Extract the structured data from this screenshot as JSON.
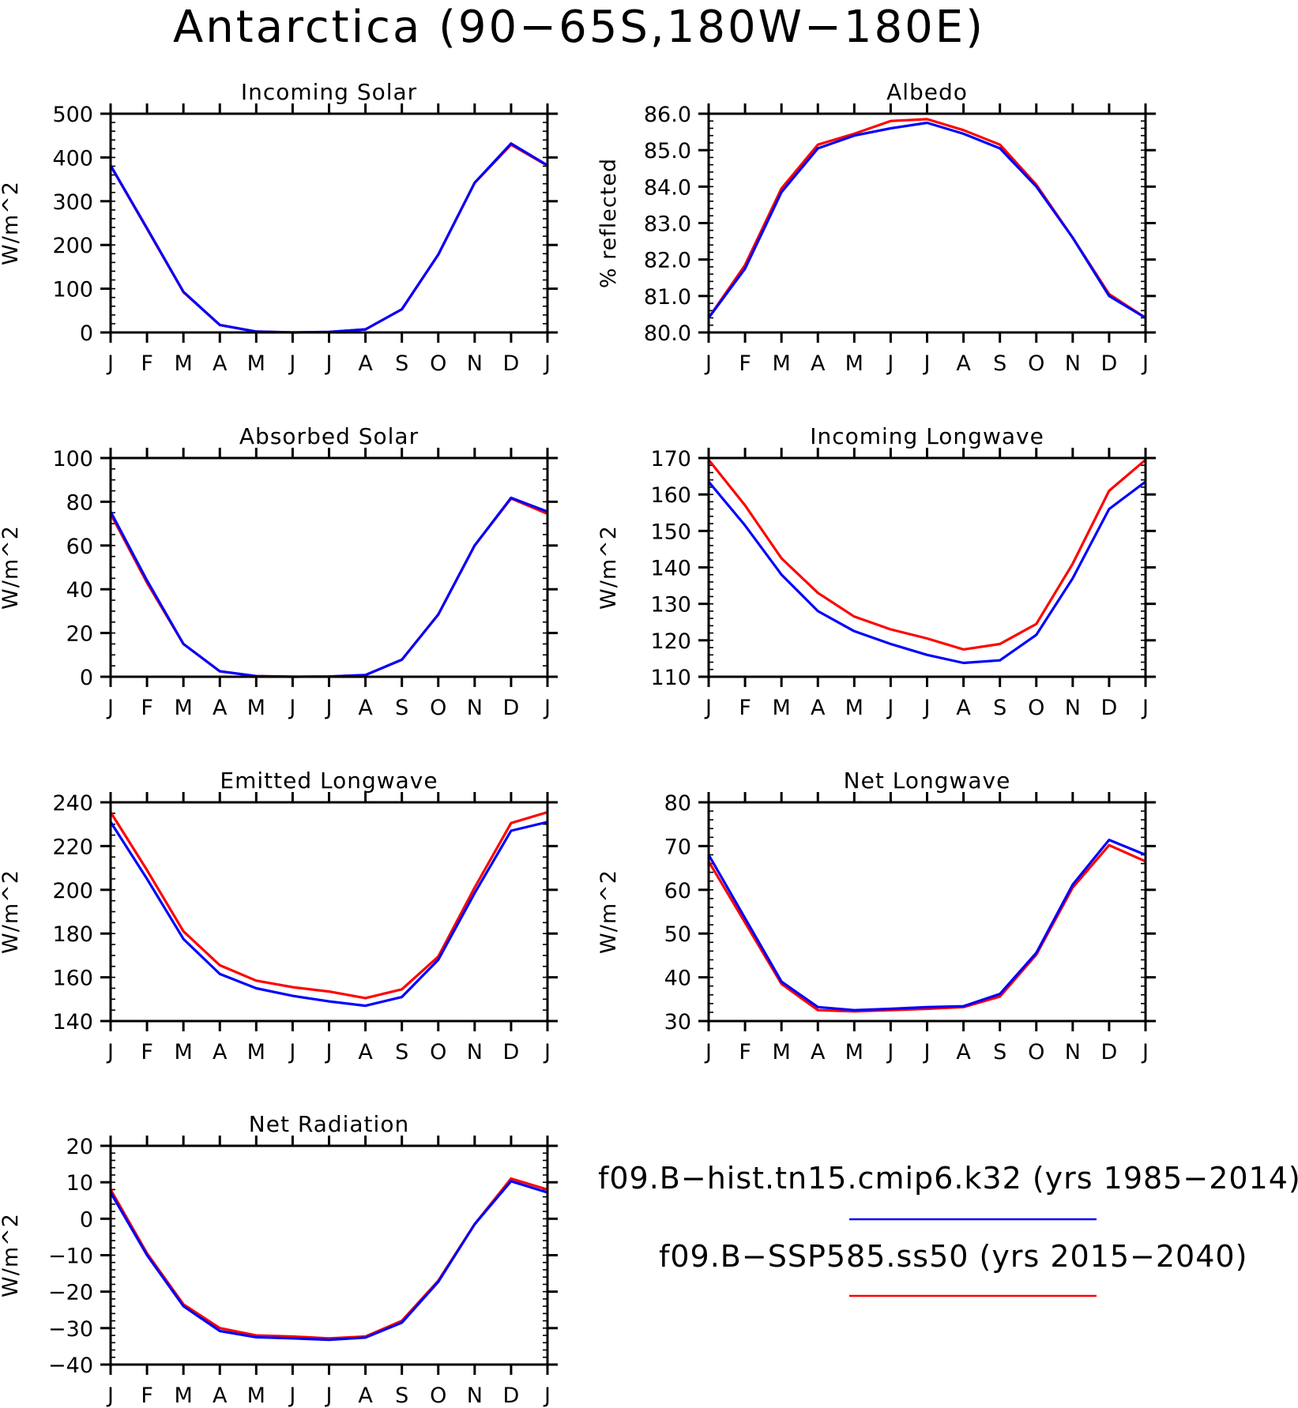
{
  "title": "Antarctica (90−65S,180W−180E)",
  "colors": {
    "hist": "#0000ff",
    "ssp": "#ff0000"
  },
  "legend": {
    "entries": [
      {
        "label": "f09.B−hist.tn15.cmip6.k32 (yrs 1985−2014)",
        "color": "#0000ff"
      },
      {
        "label": "f09.B−SSP585.ss50 (yrs 2015−2040)",
        "color": "#ff0000"
      }
    ]
  },
  "chart_data": [
    {
      "type": "line",
      "title": "Incoming Solar",
      "ylabel": "W/m^2",
      "categories": [
        "J",
        "F",
        "M",
        "A",
        "M",
        "J",
        "J",
        "A",
        "S",
        "O",
        "N",
        "D",
        "J"
      ],
      "ylim": [
        0,
        500
      ],
      "yticks": [
        0,
        100,
        200,
        300,
        400,
        500
      ],
      "ytick_labels": [
        "0",
        "100",
        "200",
        "300",
        "400",
        "500"
      ],
      "yminor": 20,
      "series": [
        {
          "color": "#ff0000",
          "values": [
            381,
            237,
            92,
            17,
            2,
            0,
            1,
            7,
            53,
            178,
            342,
            429,
            381
          ]
        },
        {
          "color": "#0000ff",
          "values": [
            382,
            238,
            93,
            17,
            2,
            0,
            1,
            7,
            53,
            178,
            342,
            432,
            382
          ]
        }
      ]
    },
    {
      "type": "line",
      "title": "Albedo",
      "ylabel": "% reflected",
      "categories": [
        "J",
        "F",
        "M",
        "A",
        "M",
        "J",
        "J",
        "A",
        "S",
        "O",
        "N",
        "D",
        "J"
      ],
      "ylim": [
        80,
        86
      ],
      "yticks": [
        80,
        81,
        82,
        83,
        84,
        85,
        86
      ],
      "ytick_labels": [
        "80.0",
        "81.0",
        "82.0",
        "83.0",
        "84.0",
        "85.0",
        "86.0"
      ],
      "yminor": 0.2,
      "series": [
        {
          "color": "#ff0000",
          "values": [
            80.4,
            81.85,
            83.95,
            85.15,
            85.45,
            85.8,
            85.85,
            85.55,
            85.15,
            84.05,
            82.6,
            81.05,
            80.4
          ]
        },
        {
          "color": "#0000ff",
          "values": [
            80.4,
            81.75,
            83.85,
            85.05,
            85.4,
            85.6,
            85.75,
            85.45,
            85.05,
            84.0,
            82.6,
            81.0,
            80.4
          ]
        }
      ]
    },
    {
      "type": "line",
      "title": "Absorbed Solar",
      "ylabel": "W/m^2",
      "categories": [
        "J",
        "F",
        "M",
        "A",
        "M",
        "J",
        "J",
        "A",
        "S",
        "O",
        "N",
        "D",
        "J"
      ],
      "ylim": [
        0,
        100
      ],
      "yticks": [
        0,
        20,
        40,
        60,
        80,
        100
      ],
      "ytick_labels": [
        "0",
        "20",
        "40",
        "60",
        "80",
        "100"
      ],
      "yminor": 5,
      "series": [
        {
          "color": "#ff0000",
          "values": [
            74.5,
            43,
            15,
            2.5,
            0.3,
            0,
            0.1,
            0.8,
            7.8,
            28.5,
            60,
            81.5,
            74.5
          ]
        },
        {
          "color": "#0000ff",
          "values": [
            75.5,
            44,
            15,
            2.5,
            0.3,
            0,
            0.1,
            0.8,
            7.8,
            28.5,
            60,
            81.8,
            75.5
          ]
        }
      ]
    },
    {
      "type": "line",
      "title": "Incoming Longwave",
      "ylabel": "W/m^2",
      "categories": [
        "J",
        "F",
        "M",
        "A",
        "M",
        "J",
        "J",
        "A",
        "S",
        "O",
        "N",
        "D",
        "J"
      ],
      "ylim": [
        110,
        170
      ],
      "yticks": [
        110,
        120,
        130,
        140,
        150,
        160,
        170
      ],
      "ytick_labels": [
        "110",
        "120",
        "130",
        "140",
        "150",
        "160",
        "170"
      ],
      "yminor": 2,
      "series": [
        {
          "color": "#ff0000",
          "values": [
            169.5,
            157,
            142.5,
            133,
            126.5,
            123,
            120.5,
            117.5,
            119,
            124.5,
            141,
            161,
            169.5
          ]
        },
        {
          "color": "#0000ff",
          "values": [
            163.5,
            151.5,
            138,
            128,
            122.5,
            119,
            116,
            113.8,
            114.5,
            121.5,
            137,
            156,
            163.5
          ]
        }
      ]
    },
    {
      "type": "line",
      "title": "Emitted Longwave",
      "ylabel": "W/m^2",
      "categories": [
        "J",
        "F",
        "M",
        "A",
        "M",
        "J",
        "J",
        "A",
        "S",
        "O",
        "N",
        "D",
        "J"
      ],
      "ylim": [
        140,
        240
      ],
      "yticks": [
        140,
        160,
        180,
        200,
        220,
        240
      ],
      "ytick_labels": [
        "140",
        "160",
        "180",
        "200",
        "220",
        "240"
      ],
      "yminor": 5,
      "series": [
        {
          "color": "#ff0000",
          "values": [
            235.5,
            209,
            181,
            165.5,
            158.5,
            155.5,
            153.5,
            150.5,
            154.5,
            169.5,
            201,
            230.5,
            235.5
          ]
        },
        {
          "color": "#0000ff",
          "values": [
            231,
            205,
            177.5,
            161.5,
            155,
            151.5,
            149,
            147,
            151,
            168,
            198.5,
            227,
            231
          ]
        }
      ]
    },
    {
      "type": "line",
      "title": "Net Longwave",
      "ylabel": "W/m^2",
      "categories": [
        "J",
        "F",
        "M",
        "A",
        "M",
        "J",
        "J",
        "A",
        "S",
        "O",
        "N",
        "D",
        "J"
      ],
      "ylim": [
        30,
        80
      ],
      "yticks": [
        30,
        40,
        50,
        60,
        70,
        80
      ],
      "ytick_labels": [
        "30",
        "40",
        "50",
        "60",
        "70",
        "80"
      ],
      "yminor": 2,
      "series": [
        {
          "color": "#ff0000",
          "values": [
            66.5,
            52.5,
            38.5,
            32.5,
            32.2,
            32.5,
            32.8,
            33.2,
            35.6,
            45.2,
            60.5,
            70.2,
            66.5
          ]
        },
        {
          "color": "#0000ff",
          "values": [
            68,
            53.5,
            39,
            33.2,
            32.5,
            32.8,
            33.2,
            33.4,
            36.2,
            45.6,
            61.2,
            71.4,
            68
          ]
        }
      ]
    },
    {
      "type": "line",
      "title": "Net Radiation",
      "ylabel": "W/m^2",
      "categories": [
        "J",
        "F",
        "M",
        "A",
        "M",
        "J",
        "J",
        "A",
        "S",
        "O",
        "N",
        "D",
        "J"
      ],
      "ylim": [
        -40,
        20
      ],
      "yticks": [
        -40,
        -30,
        -20,
        -10,
        0,
        10,
        20
      ],
      "ytick_labels": [
        "−40",
        "−30",
        "−20",
        "−10",
        "0",
        "10",
        "20"
      ],
      "yminor": 2,
      "series": [
        {
          "color": "#ff0000",
          "values": [
            8,
            -9.5,
            -23.5,
            -30,
            -32,
            -32.3,
            -32.8,
            -32.3,
            -28,
            -17,
            -1.5,
            11,
            8
          ]
        },
        {
          "color": "#0000ff",
          "values": [
            7.2,
            -10,
            -24,
            -30.8,
            -32.5,
            -32.8,
            -33.2,
            -32.6,
            -28.5,
            -17.3,
            -1.5,
            10.3,
            7.2
          ]
        }
      ]
    }
  ]
}
